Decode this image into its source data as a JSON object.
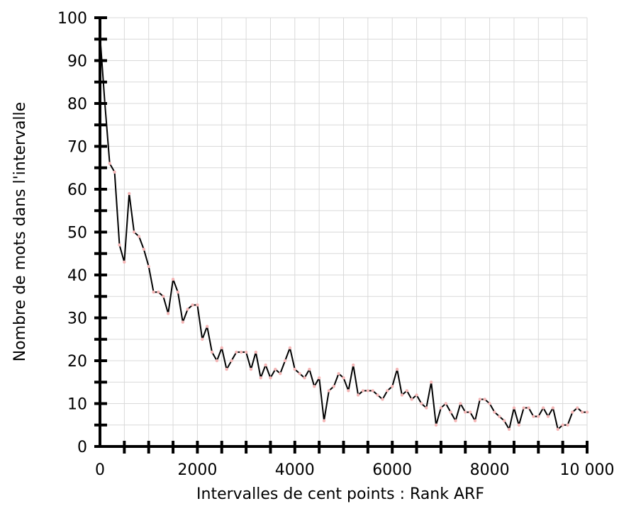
{
  "chart_data": {
    "type": "line",
    "title": "",
    "xlabel": "Intervalles de cent points : Rank ARF",
    "ylabel": "Nombre de mots dans l'intervalle",
    "xlim": [
      0,
      10000
    ],
    "ylim": [
      0,
      100
    ],
    "x_ticks": [
      0,
      2000,
      4000,
      6000,
      8000,
      10000
    ],
    "x_tick_labels": [
      "0",
      "2000",
      "4000",
      "6000",
      "8000",
      "10 000"
    ],
    "y_ticks": [
      0,
      10,
      20,
      30,
      40,
      50,
      60,
      70,
      80,
      90,
      100
    ],
    "y_tick_labels": [
      "0",
      "10",
      "20",
      "30",
      "40",
      "50",
      "60",
      "70",
      "80",
      "90",
      "100"
    ],
    "grid": true,
    "legend": "none",
    "line_color": "#000000",
    "marker_color": "#f4b6b6",
    "series": [
      {
        "x": [
          0,
          100,
          200,
          300,
          400,
          500,
          600,
          700,
          800,
          900,
          1000,
          1100,
          1200,
          1300,
          1400,
          1500,
          1600,
          1700,
          1800,
          1900,
          2000,
          2100,
          2200,
          2300,
          2400,
          2500,
          2600,
          2700,
          2800,
          2900,
          3000,
          3100,
          3200,
          3300,
          3400,
          3500,
          3600,
          3700,
          3800,
          3900,
          4000,
          4100,
          4200,
          4300,
          4400,
          4500,
          4600,
          4700,
          4800,
          4900,
          5000,
          5100,
          5200,
          5300,
          5400,
          5500,
          5600,
          5700,
          5800,
          5900,
          6000,
          6100,
          6200,
          6300,
          6400,
          6500,
          6600,
          6700,
          6800,
          6900,
          7000,
          7100,
          7200,
          7300,
          7400,
          7500,
          7600,
          7700,
          7800,
          7900,
          8000,
          8100,
          8200,
          8300,
          8400,
          8500,
          8600,
          8700,
          8800,
          8900,
          9000,
          9100,
          9200,
          9300,
          9400,
          9500,
          9600,
          9700,
          9800,
          9900,
          10000
        ],
        "values": [
          96,
          80,
          66,
          64,
          47,
          43,
          59,
          50,
          49,
          46,
          42,
          36,
          36,
          35,
          31,
          39,
          36,
          29,
          32,
          33,
          33,
          25,
          28,
          22,
          20,
          23,
          18,
          20,
          22,
          22,
          22,
          18,
          22,
          16,
          19,
          16,
          18,
          17,
          20,
          23,
          18,
          17,
          16,
          18,
          14,
          16,
          6,
          13,
          14,
          17,
          16,
          13,
          19,
          12,
          13,
          13,
          13,
          12,
          11,
          13,
          14,
          18,
          12,
          13,
          11,
          12,
          10,
          9,
          15,
          5,
          9,
          10,
          8,
          6,
          10,
          8,
          8,
          6,
          11,
          11,
          10,
          8,
          7,
          6,
          4,
          9,
          5,
          9,
          9,
          7,
          7,
          9,
          7,
          9,
          4,
          5,
          5,
          8,
          9,
          8,
          8
        ]
      }
    ]
  }
}
